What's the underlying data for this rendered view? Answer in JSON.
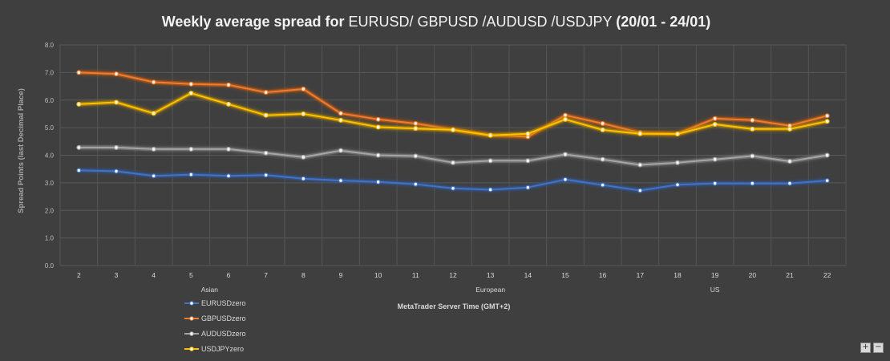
{
  "chart_data": {
    "type": "line",
    "title_parts": [
      {
        "text": "Weekly average spread for ",
        "bold": true
      },
      {
        "text": "EURUSD/ GBPUSD /AUDUSD /USDJPY ",
        "bold": false
      },
      {
        "text": "(20/01 - 24/01)",
        "bold": true
      }
    ],
    "xlabel": "MetaTrader Server Time (GMT+2)",
    "ylabel": "Spread Points  (last Decimal Place)",
    "ylim": [
      0,
      8
    ],
    "yticks": [
      "0.0",
      "1.0",
      "2.0",
      "3.0",
      "4.0",
      "5.0",
      "6.0",
      "7.0",
      "8.0"
    ],
    "categories": [
      "2",
      "3",
      "4",
      "5",
      "6",
      "7",
      "8",
      "9",
      "10",
      "11",
      "12",
      "13",
      "14",
      "15",
      "16",
      "17",
      "18",
      "19",
      "20",
      "21",
      "22"
    ],
    "sessions": [
      {
        "label": "Asian",
        "at_category": "5"
      },
      {
        "label": "European",
        "at_category": "13"
      },
      {
        "label": "US",
        "at_category": "19"
      }
    ],
    "series": [
      {
        "name": "EURUSDzero",
        "color": "#4472c4",
        "glow": "#2f5597",
        "values": [
          3.45,
          3.42,
          3.25,
          3.3,
          3.25,
          3.28,
          3.15,
          3.08,
          3.03,
          2.95,
          2.8,
          2.75,
          2.83,
          3.12,
          2.92,
          2.72,
          2.93,
          2.98,
          2.98,
          2.98,
          3.08
        ]
      },
      {
        "name": "GBPUSDzero",
        "color": "#ed7d31",
        "glow": "#c55a11",
        "values": [
          7.0,
          6.95,
          6.65,
          6.58,
          6.55,
          6.28,
          6.4,
          5.52,
          5.3,
          5.15,
          4.93,
          4.73,
          4.67,
          5.45,
          5.15,
          4.82,
          4.78,
          5.33,
          5.27,
          5.07,
          5.43
        ]
      },
      {
        "name": "AUDUSDzero",
        "color": "#a5a5a5",
        "glow": "#7f7f7f",
        "values": [
          4.28,
          4.28,
          4.22,
          4.22,
          4.22,
          4.08,
          3.93,
          4.17,
          4.0,
          3.97,
          3.73,
          3.8,
          3.8,
          4.03,
          3.85,
          3.65,
          3.73,
          3.85,
          3.97,
          3.78,
          4.0
        ]
      },
      {
        "name": "USDJPYzero",
        "color": "#ffc000",
        "glow": "#bf9000",
        "values": [
          5.85,
          5.92,
          5.52,
          6.25,
          5.85,
          5.45,
          5.5,
          5.27,
          5.02,
          4.97,
          4.92,
          4.72,
          4.78,
          5.3,
          4.92,
          4.78,
          4.77,
          5.12,
          4.95,
          4.95,
          5.23
        ]
      }
    ],
    "legend_position": "bottom-left",
    "grid": true
  },
  "controls": {
    "plus_label": "+",
    "minus_label": "−"
  }
}
